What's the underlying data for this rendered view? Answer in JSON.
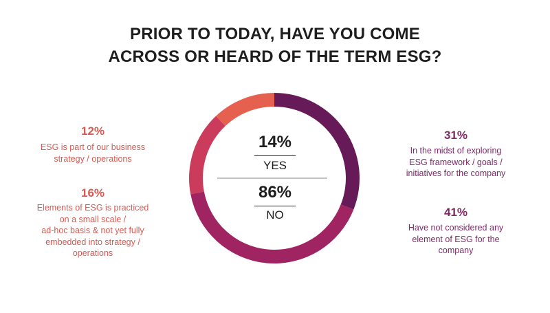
{
  "chart_data": {
    "type": "pie",
    "title_lines": [
      "PRIOR TO TODAY, HAVE YOU COME",
      "ACROSS OR HEARD OF THE TERM ESG?"
    ],
    "center": {
      "yes_pct": "14%",
      "yes_label": "YES",
      "no_pct": "86%",
      "no_label": "NO"
    },
    "slices": [
      {
        "pct_label": "31%",
        "value": 31,
        "color": "#661a57",
        "desc_lines": [
          "In the midst of exploring",
          "ESG framework / goals /",
          "initiatives for the company"
        ]
      },
      {
        "pct_label": "41%",
        "value": 41,
        "color": "#a02462",
        "desc_lines": [
          "Have not considered any",
          "element of ESG for the",
          "company"
        ]
      },
      {
        "pct_label": "16%",
        "value": 16,
        "color": "#cb3c5c",
        "desc_lines": [
          "Elements of ESG is practiced",
          "on a small scale /",
          "ad-hoc basis & not yet fully",
          "embedded into strategy /",
          "operations"
        ]
      },
      {
        "pct_label": "12%",
        "value": 12,
        "color": "#e6604f",
        "desc_lines": [
          "ESG is part of our business",
          "strategy / operations"
        ]
      }
    ]
  }
}
